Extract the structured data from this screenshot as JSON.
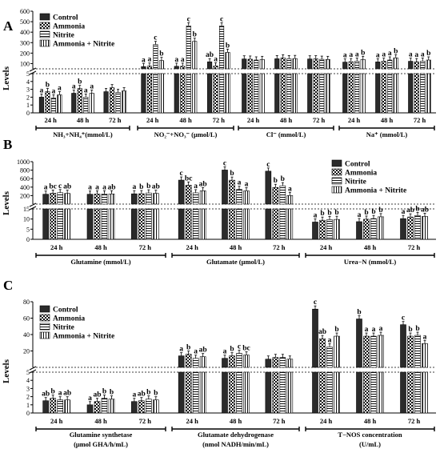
{
  "chart_data": [
    {
      "panel": "A",
      "type": "bar",
      "ylabel": "Levels",
      "series": [
        {
          "name": "Control",
          "pattern": "dark"
        },
        {
          "name": "Ammonia",
          "pattern": "check"
        },
        {
          "name": "Nitrite",
          "pattern": "hlines"
        },
        {
          "name": "Ammonia + Nitrite",
          "pattern": "vlines"
        }
      ],
      "timepoints": [
        "24 h",
        "48 h",
        "72 h"
      ],
      "lower_axis": {
        "ylim": [
          0,
          5
        ],
        "ticks": [
          "0",
          "1",
          "2",
          "3",
          "4",
          "5"
        ]
      },
      "upper_axis": {
        "ylim": [
          50,
          600
        ],
        "ticks": [
          "100",
          "200",
          "300",
          "400",
          "500",
          "600"
        ]
      },
      "groups": [
        {
          "label": "NH₃+NH₄⁺(mmol/L)",
          "values": [
            [
              2.0,
              2.7,
              1.9,
              2.3
            ],
            [
              2.5,
              3.1,
              2.0,
              2.5
            ],
            [
              2.7,
              3.2,
              2.6,
              2.8
            ]
          ],
          "letters": [
            [
              "a",
              "b",
              "a",
              "a"
            ],
            [
              "a",
              "b",
              "a",
              "a"
            ],
            [
              "",
              "",
              "",
              ""
            ]
          ]
        },
        {
          "label": "NO₂⁻+NO₃⁻ (μmol/L)",
          "values": [
            [
              71,
              75,
              282,
              129
            ],
            [
              74,
              74,
              460,
              312
            ],
            [
              117,
              77,
              459,
              207
            ]
          ],
          "letters": [
            [
              "a",
              "a",
              "c",
              "b"
            ],
            [
              "a",
              "a",
              "c",
              "b"
            ],
            [
              "ab",
              "a",
              "c",
              "b"
            ]
          ]
        },
        {
          "label": "Cl⁻ (mmol/L)",
          "values": [
            [
              144,
              142,
              134,
              139
            ],
            [
              146,
              154,
              146,
              148
            ],
            [
              144,
              145,
              141,
              139
            ]
          ],
          "letters": [
            [
              "",
              "",
              "",
              ""
            ],
            [
              "",
              "",
              "",
              ""
            ],
            [
              "",
              "",
              "",
              ""
            ]
          ]
        },
        {
          "label": "Na⁺ (mmol/L)",
          "values": [
            [
              114,
              118,
              123,
              139
            ],
            [
              116,
              122,
              134,
              155
            ],
            [
              122,
              118,
              123,
              134
            ]
          ],
          "letters": [
            [
              "a",
              "a",
              "a",
              "b"
            ],
            [
              "a",
              "a",
              "a",
              "b"
            ],
            [
              "a",
              "a",
              "a",
              "b"
            ]
          ]
        }
      ]
    },
    {
      "panel": "B",
      "type": "bar",
      "ylabel": "Levels",
      "series": [
        {
          "name": "Control",
          "pattern": "dark"
        },
        {
          "name": "Ammonia",
          "pattern": "check"
        },
        {
          "name": "Nitrite",
          "pattern": "hlines"
        },
        {
          "name": "Ammonia + Nitrite",
          "pattern": "vlines"
        }
      ],
      "timepoints": [
        "24 h",
        "48 h",
        "72 h"
      ],
      "lower_axis": {
        "ylim": [
          0,
          15
        ],
        "ticks": [
          "0",
          "5",
          "10",
          "15"
        ]
      },
      "upper_axis": {
        "ylim": [
          0,
          1000
        ],
        "ticks": [
          "200",
          "400",
          "600",
          "800",
          "1000"
        ]
      },
      "groups": [
        {
          "label": "Glutamine (mmol/L)",
          "values": [
            [
              232,
              257,
              268,
              252
            ],
            [
              232,
              236,
              239,
              240
            ],
            [
              242,
              244,
              262,
              252
            ]
          ],
          "letters": [
            [
              "a",
              "bc",
              "c",
              "ab"
            ],
            [
              "a",
              "a",
              "a",
              "ab"
            ],
            [
              "a",
              "b",
              "b",
              "ab"
            ]
          ]
        },
        {
          "label": "Glutamate (μmol/L)",
          "values": [
            [
              565,
              447,
              265,
              315
            ],
            [
              803,
              563,
              345,
              311
            ],
            [
              776,
              392,
              431,
              202
            ]
          ],
          "letters": [
            [
              "c",
              "bc",
              "a",
              "ab"
            ],
            [
              "c",
              "b",
              "a",
              "a"
            ],
            [
              "c",
              "b",
              "b",
              "a"
            ]
          ]
        },
        {
          "label": "Urea−N (mmol/L)",
          "values": [
            [
              8.5,
              9.4,
              9.7,
              9.8
            ],
            [
              8.7,
              9.9,
              10.2,
              11.1
            ],
            [
              10.2,
              11.0,
              11.7,
              11.3
            ]
          ],
          "letters": [
            [
              "a",
              "b",
              "b",
              "b"
            ],
            [
              "a",
              "b",
              "b",
              "b"
            ],
            [
              "a",
              "ab",
              "b",
              "ab"
            ]
          ]
        }
      ]
    },
    {
      "panel": "C",
      "type": "bar",
      "ylabel": "Levels",
      "series": [
        {
          "name": "Control",
          "pattern": "dark"
        },
        {
          "name": "Ammonia",
          "pattern": "check"
        },
        {
          "name": "Nitrite",
          "pattern": "hlines"
        },
        {
          "name": "Ammonia + Nitrite",
          "pattern": "vlines"
        }
      ],
      "timepoints": [
        "24 h",
        "48 h",
        "72 h"
      ],
      "lower_axis": {
        "ylim": [
          0,
          5
        ],
        "ticks": [
          "0",
          "1",
          "2",
          "3",
          "4",
          "5"
        ]
      },
      "upper_axis": {
        "ylim": [
          0,
          80
        ],
        "ticks": [
          "20",
          "40",
          "60",
          "80"
        ]
      },
      "groups": [
        {
          "label": "Glutamine synthetase",
          "label2": "(μmol GHA/h/mL)",
          "values": [
            [
              1.5,
              1.8,
              1.6,
              1.6
            ],
            [
              1.0,
              1.4,
              1.8,
              1.7
            ],
            [
              1.4,
              1.5,
              1.7,
              1.6
            ]
          ],
          "letters": [
            [
              "ab",
              "b",
              "a",
              "ab"
            ],
            [
              "a",
              "ab",
              "b",
              "b"
            ],
            [
              "a",
              "ab",
              "b",
              "b"
            ]
          ]
        },
        {
          "label": "Glutamate dehydrogenase",
          "label2": "(nmol NADH/min/mL)",
          "values": [
            [
              14,
              16,
              11,
              13
            ],
            [
              11,
              14,
              17,
              15
            ],
            [
              10,
              12,
              12,
              10
            ]
          ],
          "letters": [
            [
              "a",
              "b",
              "a",
              "ab"
            ],
            [
              "a",
              "b",
              "c",
              "bc"
            ],
            [
              "",
              "",
              "",
              ""
            ]
          ]
        },
        {
          "label": "T−NOS concentration",
          "label2": "(U/mL)",
          "values": [
            [
              71,
              35,
              25,
              38
            ],
            [
              59,
              38,
              38,
              39
            ],
            [
              52,
              38,
              39,
              29
            ]
          ],
          "letters": [
            [
              "c",
              "ab",
              "a",
              "b"
            ],
            [
              "b",
              "a",
              "a",
              "a"
            ],
            [
              "c",
              "b",
              "b",
              "a"
            ]
          ]
        }
      ]
    }
  ]
}
